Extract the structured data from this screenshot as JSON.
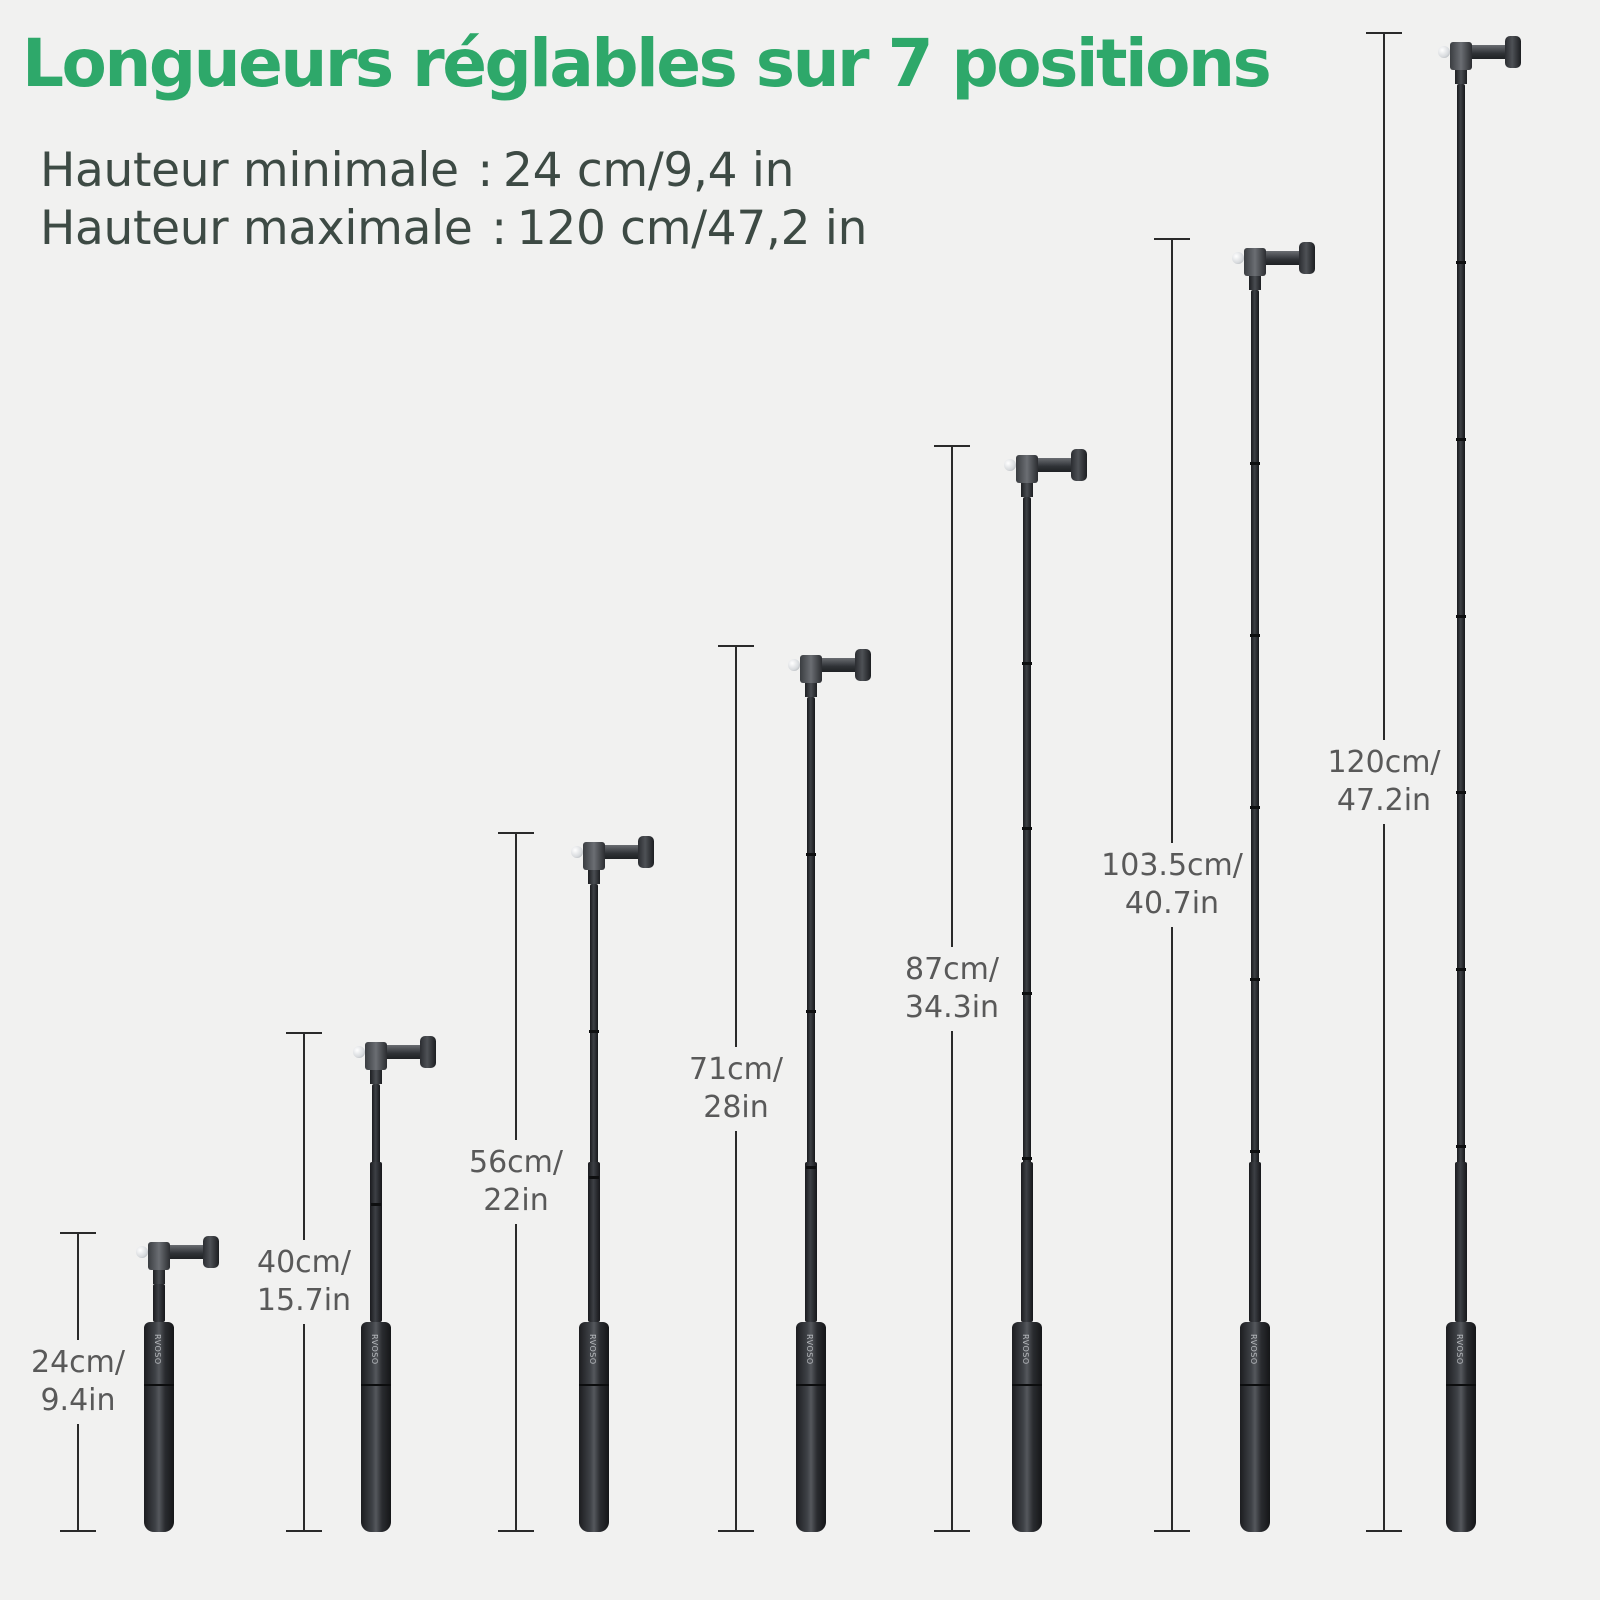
{
  "header": {
    "title": "Longueurs réglables sur 7 positions",
    "title_color": "#2ea86a"
  },
  "specs": {
    "text_color": "#3d4a44",
    "min_label": "Hauteur minimale",
    "min_value": "24 cm/9,4 in",
    "max_label": "Hauteur maximale",
    "max_value": "120 cm/47,2 in",
    "separator": ":"
  },
  "product": {
    "brand_mark": "RVOSO",
    "icon": "selfie-stick-pole"
  },
  "positions": [
    {
      "cm_label": "24cm/",
      "in_label": "9.4in",
      "length_cm": 24
    },
    {
      "cm_label": "40cm/",
      "in_label": "15.7in",
      "length_cm": 40
    },
    {
      "cm_label": "56cm/",
      "in_label": "22in",
      "length_cm": 56
    },
    {
      "cm_label": "71cm/",
      "in_label": "28in",
      "length_cm": 71
    },
    {
      "cm_label": "87cm/",
      "in_label": "34.3in",
      "length_cm": 87
    },
    {
      "cm_label": "103.5cm/",
      "in_label": "40.7in",
      "length_cm": 103.5
    },
    {
      "cm_label": "120cm/",
      "in_label": "47.2in",
      "length_cm": 120
    }
  ]
}
